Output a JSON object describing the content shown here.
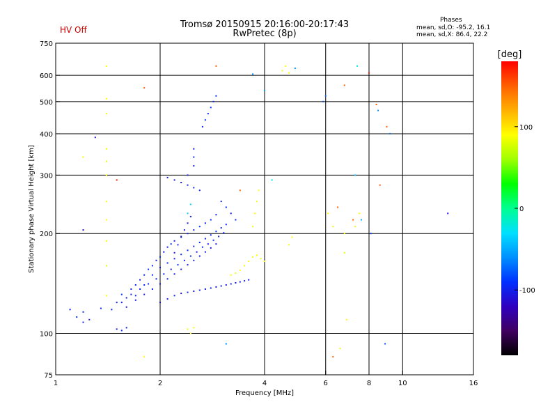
{
  "header": {
    "title_line1": "Tromsø 20150915 20:16:00-20:17:43",
    "title_line2": "RwPretec (8p)",
    "status_label": "HV Off",
    "phase_title": "Phases",
    "phase_line1": "mean, sd,O: -95.2, 16.1",
    "phase_line2": "mean, sd,X:  86.4, 22.2",
    "status_color": "#cc0000"
  },
  "chart_data": {
    "type": "scatter",
    "title": "Tromsø 20150915 20:16:00-20:17:43",
    "subtitle": "RwPretec (8p)",
    "xlabel": "Frequency [MHz]",
    "ylabel": "Stationary phase Virtual Height [km]",
    "x_scale": "log",
    "y_scale": "log",
    "xlim": [
      1,
      16
    ],
    "ylim": [
      75,
      750
    ],
    "x_ticks": [
      1,
      2,
      4,
      6,
      8,
      10,
      16
    ],
    "x_tick_labels": [
      "1",
      "2",
      "4",
      "6",
      "8",
      "10",
      "16"
    ],
    "y_ticks": [
      75,
      100,
      200,
      300,
      400,
      500,
      600,
      750
    ],
    "y_tick_labels": [
      "75",
      "100",
      "200",
      "300",
      "400",
      "500",
      "600",
      "750"
    ],
    "grid": true,
    "colorbar": {
      "label": "[deg]",
      "range": [
        -180,
        180
      ],
      "ticks": [
        100,
        0,
        -100
      ],
      "tick_labels": [
        "100",
        "0",
        "-100"
      ],
      "colors": [
        "#000000",
        "#400060",
        "#3000c0",
        "#0030ff",
        "#0090ff",
        "#00e0ff",
        "#00ff90",
        "#00ff00",
        "#a0ff00",
        "#ffff00",
        "#ffb000",
        "#ff6000",
        "#ff0000"
      ]
    },
    "series": [
      {
        "points": [
          [
            1.2,
            116,
            -95
          ],
          [
            1.25,
            110,
            -100
          ],
          [
            1.35,
            119,
            -95
          ],
          [
            1.45,
            118,
            -100
          ],
          [
            1.5,
            124,
            -95
          ],
          [
            1.55,
            131,
            -90
          ],
          [
            1.6,
            128,
            -100
          ],
          [
            1.65,
            136,
            -95
          ],
          [
            1.7,
            140,
            -100
          ],
          [
            1.75,
            145,
            -95
          ],
          [
            1.8,
            150,
            -100
          ],
          [
            1.85,
            156,
            -90
          ],
          [
            1.9,
            160,
            -95
          ],
          [
            1.95,
            166,
            -100
          ],
          [
            2.0,
            170,
            -95
          ],
          [
            2.05,
            176,
            -100
          ],
          [
            2.1,
            182,
            -95
          ],
          [
            2.15,
            186,
            -90
          ],
          [
            2.2,
            190,
            -100
          ],
          [
            2.3,
            196,
            -95
          ],
          [
            2.4,
            200,
            -100
          ],
          [
            2.5,
            205,
            -95
          ],
          [
            2.6,
            210,
            -90
          ],
          [
            2.7,
            215,
            -100
          ],
          [
            2.8,
            220,
            -95
          ],
          [
            2.9,
            228,
            -100
          ],
          [
            1.55,
            124,
            -100
          ],
          [
            1.65,
            131,
            -95
          ],
          [
            1.75,
            136,
            -100
          ],
          [
            1.85,
            141,
            -95
          ],
          [
            1.95,
            146,
            -100
          ],
          [
            2.05,
            151,
            -95
          ],
          [
            2.15,
            156,
            -100
          ],
          [
            2.25,
            161,
            -95
          ],
          [
            2.35,
            166,
            -100
          ],
          [
            2.45,
            171,
            -95
          ],
          [
            2.55,
            176,
            -100
          ],
          [
            2.65,
            182,
            -95
          ],
          [
            2.75,
            186,
            -100
          ],
          [
            2.85,
            191,
            -95
          ],
          [
            2.95,
            196,
            -100
          ],
          [
            3.05,
            201,
            -95
          ],
          [
            1.6,
            120,
            -105
          ],
          [
            1.7,
            126,
            -100
          ],
          [
            1.8,
            131,
            -105
          ],
          [
            1.9,
            136,
            -100
          ],
          [
            2.0,
            141,
            -105
          ],
          [
            2.1,
            146,
            -100
          ],
          [
            2.2,
            151,
            -105
          ],
          [
            2.3,
            156,
            -100
          ],
          [
            2.4,
            161,
            -105
          ],
          [
            2.5,
            166,
            -100
          ],
          [
            2.6,
            171,
            -105
          ],
          [
            2.7,
            176,
            -100
          ],
          [
            2.8,
            181,
            -105
          ],
          [
            2.9,
            186,
            -100
          ],
          [
            1.7,
            130,
            -100
          ],
          [
            1.8,
            140,
            -95
          ],
          [
            1.9,
            150,
            -90
          ],
          [
            2.0,
            158,
            -100
          ],
          [
            2.1,
            163,
            -95
          ],
          [
            2.2,
            168,
            -100
          ],
          [
            2.3,
            173,
            -90
          ],
          [
            2.4,
            178,
            -95
          ],
          [
            2.5,
            183,
            -100
          ],
          [
            2.6,
            188,
            -95
          ],
          [
            2.7,
            193,
            -100
          ],
          [
            2.8,
            198,
            -95
          ],
          [
            2.9,
            203,
            -90
          ],
          [
            3.0,
            208,
            -100
          ],
          [
            3.1,
            213,
            -95
          ],
          [
            2.0,
            124,
            -105
          ],
          [
            2.1,
            127,
            -105
          ],
          [
            2.2,
            130,
            -100
          ],
          [
            2.3,
            132,
            -105
          ],
          [
            2.4,
            133,
            -100
          ],
          [
            2.5,
            134,
            -105
          ],
          [
            2.6,
            135,
            -100
          ],
          [
            2.7,
            136,
            -105
          ],
          [
            2.8,
            137,
            -100
          ],
          [
            2.9,
            138,
            -105
          ],
          [
            3.0,
            139,
            -100
          ],
          [
            3.1,
            140,
            -105
          ],
          [
            3.2,
            141,
            -100
          ],
          [
            3.3,
            142,
            -105
          ],
          [
            3.4,
            143,
            -100
          ],
          [
            3.5,
            144,
            -105
          ],
          [
            3.6,
            145,
            -100
          ],
          [
            2.2,
            175,
            -105
          ],
          [
            2.25,
            185,
            -100
          ],
          [
            2.3,
            195,
            -105
          ],
          [
            2.35,
            205,
            -100
          ],
          [
            2.4,
            215,
            -105
          ],
          [
            2.45,
            225,
            -100
          ],
          [
            2.65,
            420,
            -95
          ],
          [
            2.7,
            440,
            -90
          ],
          [
            2.75,
            460,
            -95
          ],
          [
            2.8,
            480,
            -90
          ],
          [
            2.85,
            500,
            -95
          ],
          [
            2.9,
            520,
            -90
          ],
          [
            2.2,
            290,
            -100
          ],
          [
            2.3,
            285,
            -105
          ],
          [
            2.4,
            280,
            -100
          ],
          [
            2.5,
            275,
            -95
          ],
          [
            2.1,
            295,
            -100
          ],
          [
            2.6,
            270,
            -100
          ],
          [
            2.5,
            320,
            -100
          ],
          [
            2.5,
            340,
            -95
          ],
          [
            2.5,
            360,
            -100
          ],
          [
            2.4,
            300,
            -100
          ],
          [
            3.0,
            250,
            -100
          ],
          [
            3.1,
            240,
            -95
          ],
          [
            3.2,
            230,
            -100
          ],
          [
            3.3,
            220,
            -95
          ],
          [
            1.5,
            103,
            -100
          ],
          [
            1.55,
            102,
            -95
          ],
          [
            1.6,
            104,
            -100
          ],
          [
            1.1,
            118,
            -100
          ],
          [
            1.15,
            112,
            -95
          ],
          [
            1.2,
            108,
            -100
          ]
        ]
      },
      {
        "points": [
          [
            1.4,
            640,
            90
          ],
          [
            1.4,
            510,
            90
          ],
          [
            1.4,
            460,
            85
          ],
          [
            1.4,
            360,
            85
          ],
          [
            1.4,
            330,
            80
          ],
          [
            1.4,
            300,
            90
          ],
          [
            1.4,
            250,
            85
          ],
          [
            1.4,
            220,
            90
          ],
          [
            1.4,
            190,
            85
          ],
          [
            1.4,
            160,
            80
          ],
          [
            1.4,
            130,
            90
          ],
          [
            3.2,
            150,
            90
          ],
          [
            3.3,
            152,
            85
          ],
          [
            3.4,
            155,
            90
          ],
          [
            3.5,
            160,
            85
          ],
          [
            3.6,
            165,
            90
          ],
          [
            3.7,
            170,
            85
          ],
          [
            3.8,
            172,
            90
          ],
          [
            3.9,
            168,
            85
          ],
          [
            4.0,
            165,
            90
          ],
          [
            3.7,
            210,
            85
          ],
          [
            3.75,
            230,
            90
          ],
          [
            3.8,
            250,
            85
          ],
          [
            3.85,
            270,
            90
          ],
          [
            4.5,
            620,
            85
          ],
          [
            4.6,
            640,
            90
          ],
          [
            4.7,
            610,
            85
          ],
          [
            2.4,
            103,
            85
          ],
          [
            2.45,
            100,
            90
          ],
          [
            2.5,
            104,
            85
          ],
          [
            4.8,
            195,
            90
          ],
          [
            4.7,
            185,
            85
          ],
          [
            1.2,
            340,
            85
          ],
          [
            6.1,
            230,
            90
          ],
          [
            6.3,
            210,
            85
          ],
          [
            6.6,
            90,
            85
          ],
          [
            6.8,
            175,
            80
          ],
          [
            6.9,
            110,
            90
          ],
          [
            7.3,
            210,
            85
          ],
          [
            7.5,
            230,
            90
          ],
          [
            1.8,
            85,
            90
          ],
          [
            6.8,
            200,
            85
          ]
        ]
      },
      {
        "points": [
          [
            2.9,
            640,
            150
          ],
          [
            1.8,
            550,
            150
          ],
          [
            6.8,
            560,
            150
          ],
          [
            8.0,
            610,
            170
          ],
          [
            8.4,
            490,
            150
          ],
          [
            9.0,
            420,
            150
          ],
          [
            8.6,
            280,
            150
          ],
          [
            6.5,
            240,
            150
          ],
          [
            6.3,
            85,
            150
          ],
          [
            3.4,
            270,
            150
          ],
          [
            7.2,
            220,
            150
          ],
          [
            1.5,
            290,
            170
          ]
        ]
      },
      {
        "points": [
          [
            3.7,
            605,
            -60
          ],
          [
            4.2,
            290,
            -30
          ],
          [
            7.3,
            300,
            -40
          ],
          [
            7.4,
            640,
            -20
          ],
          [
            4.0,
            540,
            -50
          ],
          [
            6.0,
            520,
            -70
          ],
          [
            4.9,
            630,
            -60
          ],
          [
            2.4,
            230,
            -40
          ],
          [
            2.45,
            245,
            -30
          ],
          [
            8.5,
            470,
            -60
          ],
          [
            9.2,
            400,
            -70
          ],
          [
            13.5,
            230,
            -110
          ],
          [
            7.6,
            220,
            -50
          ],
          [
            5.9,
            500,
            -80
          ],
          [
            8.1,
            200,
            -90
          ],
          [
            8.9,
            93,
            -80
          ],
          [
            3.1,
            93,
            -60
          ],
          [
            1.3,
            390,
            -110
          ],
          [
            1.2,
            205,
            -120
          ]
        ]
      }
    ]
  }
}
